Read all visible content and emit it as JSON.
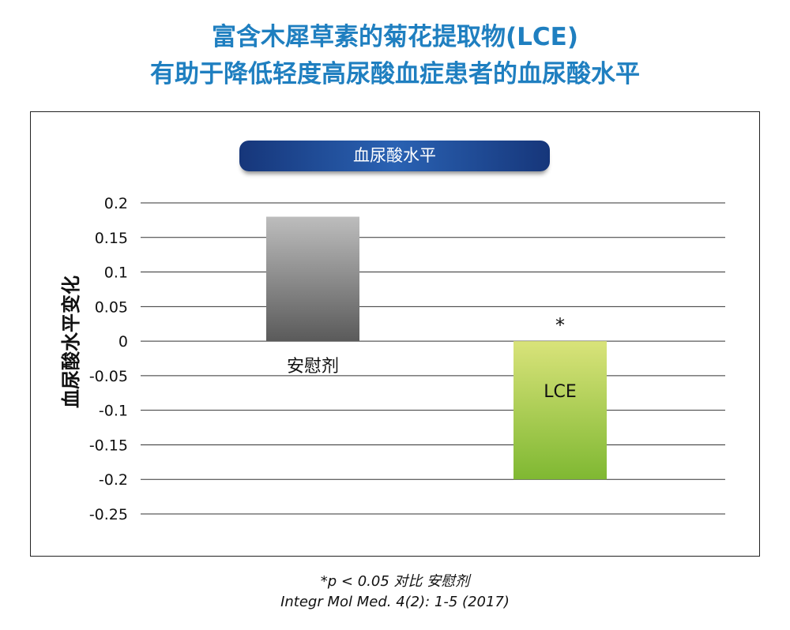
{
  "header": {
    "title_line1": "富含木犀草素的菊花提取物(LCE)",
    "title_line2": "有助于降低轻度高尿酸血症患者的血尿酸水平"
  },
  "chart_data": {
    "type": "bar",
    "title": "血尿酸水平",
    "ylabel": "血尿酸水平变化",
    "xlabel": "",
    "categories": [
      "安慰剂",
      "LCE"
    ],
    "values": [
      0.18,
      -0.2
    ],
    "ylim": [
      -0.25,
      0.2
    ],
    "yticks": [
      0.2,
      0.15,
      0.1,
      0.05,
      0,
      -0.05,
      -0.1,
      -0.15,
      -0.2,
      -0.25
    ],
    "ytick_labels": [
      "0.2",
      "0.15",
      "0.1",
      "0.05",
      "0",
      "-0.05",
      "-0.1",
      "-0.15",
      "-0.2",
      "-0.25"
    ],
    "annotations": [
      {
        "category": "LCE",
        "text": "*"
      }
    ],
    "grid": true,
    "legend": "none",
    "colors": {
      "placebo_top": "#bdbdbd",
      "placebo_bottom": "#5a5a5a",
      "lce_top": "#d9e37a",
      "lce_bottom": "#7fb832",
      "grid": "#333333",
      "title_blue": "#1f7fc0",
      "pill": "#1e4a97"
    }
  },
  "footer": {
    "line1": "*p < 0.05 对比 安慰剂",
    "line2": "Integr Mol Med. 4(2): 1-5 (2017)"
  }
}
